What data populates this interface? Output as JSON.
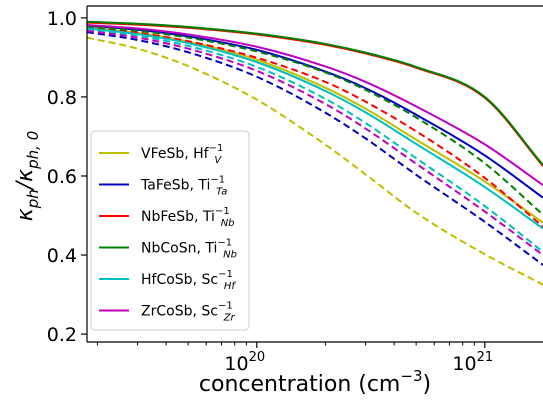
{
  "chart_data": {
    "type": "line",
    "xlabel": "concentration (cm",
    "xlabel_exp": "−3",
    "xlabel_close": ")",
    "ylabel": "κ",
    "ylabel_sub_num": "ph",
    "ylabel_slash": "/κ",
    "ylabel_sub_den": "ph, 0",
    "x_scale": "log",
    "xlim": [
      1.8e+19,
      1.8e+21
    ],
    "ylim": [
      0.18,
      1.03
    ],
    "x_ticks": [
      {
        "value": 1e+20,
        "base": "10",
        "exp": "20"
      },
      {
        "value": 1e+21,
        "base": "10",
        "exp": "21"
      }
    ],
    "y_ticks": [
      {
        "value": 0.2,
        "label": "0.2"
      },
      {
        "value": 0.4,
        "label": "0.4"
      },
      {
        "value": 0.6,
        "label": "0.6"
      },
      {
        "value": 0.8,
        "label": "0.8"
      },
      {
        "value": 1.0,
        "label": "1.0"
      }
    ],
    "grid": false,
    "legend_position": "lower-left",
    "x": [
      1.8e+19,
      3e+19,
      5e+19,
      1e+20,
      2e+20,
      3e+20,
      5e+20,
      1e+21,
      1.8e+21
    ],
    "series": [
      {
        "name": "VFeSb, Hf",
        "sub": "V",
        "sup": "−1",
        "color": "#bfbf00",
        "style": "solid",
        "values": [
          0.975,
          0.962,
          0.94,
          0.894,
          0.823,
          0.77,
          0.692,
          0.586,
          0.482
        ]
      },
      {
        "name": "VFeSb, Hf",
        "sub": "V",
        "sup": "−1",
        "color": "#bfbf00",
        "style": "dashed",
        "legend": false,
        "values": [
          0.95,
          0.922,
          0.878,
          0.793,
          0.679,
          0.604,
          0.507,
          0.402,
          0.325
        ]
      },
      {
        "name": "TaFeSb, Ti",
        "sub": "Ta",
        "sup": "−1",
        "color": "#0000bf",
        "style": "solid",
        "values": [
          0.98,
          0.97,
          0.953,
          0.919,
          0.864,
          0.822,
          0.755,
          0.652,
          0.545
        ]
      },
      {
        "name": "TaFeSb, Ti",
        "sub": "Ta",
        "sup": "−1",
        "color": "#0000bf",
        "style": "dashed",
        "legend": false,
        "values": [
          0.964,
          0.944,
          0.913,
          0.851,
          0.76,
          0.695,
          0.603,
          0.484,
          0.375
        ]
      },
      {
        "name": "NbFeSb, Ti",
        "sub": "Nb",
        "sup": "−1",
        "color": "#ff0000",
        "style": "solid",
        "values": [
          0.988,
          0.983,
          0.975,
          0.958,
          0.932,
          0.91,
          0.874,
          0.798,
          0.625
        ]
      },
      {
        "name": "NbFeSb, Ti",
        "sub": "Nb",
        "sup": "−1",
        "color": "#ff0000",
        "style": "dashed",
        "legend": false,
        "values": [
          0.975,
          0.962,
          0.941,
          0.899,
          0.838,
          0.788,
          0.713,
          0.595,
          0.472
        ]
      },
      {
        "name": "NbCoSn, Ti",
        "sub": "Nb",
        "sup": "−1",
        "color": "#008000",
        "style": "solid",
        "values": [
          0.99,
          0.985,
          0.977,
          0.96,
          0.934,
          0.912,
          0.876,
          0.8,
          0.628
        ]
      },
      {
        "name": "NbCoSn, Ti",
        "sub": "Nb",
        "sup": "−1",
        "color": "#008000",
        "style": "dashed",
        "legend": false,
        "values": [
          0.978,
          0.967,
          0.95,
          0.915,
          0.862,
          0.818,
          0.748,
          0.632,
          0.502
        ]
      },
      {
        "name": "HfCoSb, Sc",
        "sub": "Hf",
        "sup": "−1",
        "color": "#00bfbf",
        "style": "solid",
        "values": [
          0.973,
          0.959,
          0.936,
          0.888,
          0.815,
          0.761,
          0.681,
          0.572,
          0.467
        ]
      },
      {
        "name": "HfCoSb, Sc",
        "sub": "Hf",
        "sup": "−1",
        "color": "#00bfbf",
        "style": "dashed",
        "legend": false,
        "values": [
          0.97,
          0.955,
          0.929,
          0.876,
          0.795,
          0.734,
          0.645,
          0.524,
          0.408
        ]
      },
      {
        "name": "ZrCoSb, Sc",
        "sub": "Zr",
        "sup": "−1",
        "color": "#bf00bf",
        "style": "solid",
        "values": [
          0.982,
          0.973,
          0.958,
          0.927,
          0.877,
          0.838,
          0.776,
          0.68,
          0.577
        ]
      },
      {
        "name": "ZrCoSb, Sc",
        "sub": "Zr",
        "sup": "−1",
        "color": "#bf00bf",
        "style": "dashed",
        "legend": false,
        "values": [
          0.967,
          0.95,
          0.922,
          0.866,
          0.782,
          0.72,
          0.631,
          0.51,
          0.4
        ]
      }
    ]
  }
}
